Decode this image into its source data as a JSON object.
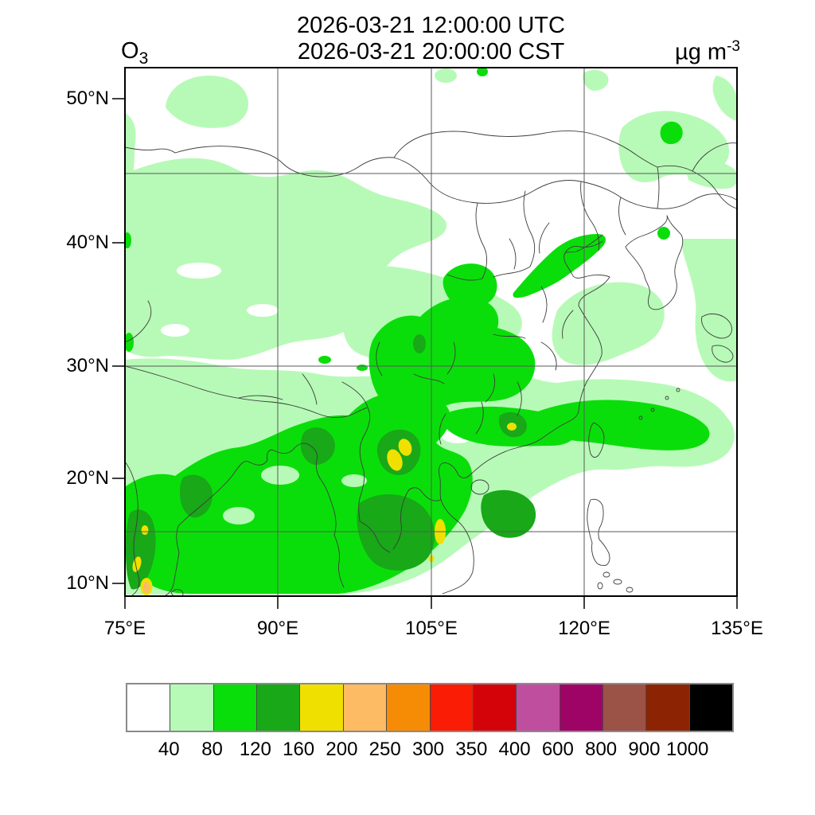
{
  "title": {
    "line1": "2026-03-21 12:00:00 UTC",
    "line2": "2026-03-21 20:00:00 CST"
  },
  "species": {
    "base": "O",
    "subscript": "3"
  },
  "units": {
    "base": "µg m",
    "exponent": "-3"
  },
  "axes": {
    "lon_ticks": [
      "75°E",
      "90°E",
      "105°E",
      "120°E",
      "135°E"
    ],
    "lat_ticks": [
      "50°N",
      "40°N",
      "30°N",
      "20°N",
      "10°N"
    ]
  },
  "colorbar": {
    "labels": [
      "40",
      "80",
      "120",
      "160",
      "200",
      "250",
      "300",
      "350",
      "400",
      "600",
      "800",
      "900",
      "1000"
    ],
    "colors": [
      "#ffffff",
      "#b7fab7",
      "#0ade0a",
      "#18a818",
      "#f0e000",
      "#fdbb63",
      "#f68c05",
      "#fb1c05",
      "#d40309",
      "#bf4f9e",
      "#9e0466",
      "#9b5247",
      "#8c2403",
      "#000000"
    ]
  },
  "chart_data": {
    "type": "heatmap",
    "title": "2026-03-21 12:00:00 UTC / 2026-03-21 20:00:00 CST",
    "variable": "O3 surface concentration",
    "units": "µg m-3",
    "projection": "mercator",
    "lon_range": [
      75,
      135
    ],
    "lat_range": [
      9,
      52.5
    ],
    "x_ticks_deg": [
      75,
      90,
      105,
      120,
      135
    ],
    "y_ticks_deg": [
      50,
      40,
      30,
      20,
      10
    ],
    "grid_lines": {
      "lon_deg": [
        90,
        105,
        120
      ],
      "lat_deg": [
        45,
        30,
        15
      ]
    },
    "levels": [
      40,
      80,
      120,
      160,
      200,
      250,
      300,
      350,
      400,
      600,
      800,
      900,
      1000
    ],
    "palette": [
      "#ffffff",
      "#b7fab7",
      "#0ade0a",
      "#18a818",
      "#f0e000",
      "#fdbb63",
      "#f68c05",
      "#fb1c05",
      "#d40309",
      "#bf4f9e",
      "#9e0466",
      "#9b5247",
      "#8c2403",
      "#000000"
    ],
    "legend_position": "bottom",
    "regions": [
      {
        "area": "Northwest China, Mongolia, most of Northeast China and seas east of Korea/Japan",
        "value_range": "<40 to 80"
      },
      {
        "area": "Tibetan Plateau / west-central China broad pale band",
        "value_range": "40-80"
      },
      {
        "area": "Central-eastern China (Sichuan, North China Plain, Bohai rim diagonal streak)",
        "value_range": "80-160"
      },
      {
        "area": "Southern China, Indochina peninsula, Bay of Bengal and eastern India",
        "value_range": "80-160"
      },
      {
        "area": "Guizhou/Guangxi spots, northern Vietnam-Laos, Pearl River Delta",
        "value_range": "160-200"
      },
      {
        "area": "West coast of India hot spots",
        "value_range": "160-250"
      },
      {
        "area": "Plume over ocean east of Taiwan toward 130°E",
        "value_range": "80-120"
      },
      {
        "area": "Korea and Yellow Sea",
        "value_range": "40-80 with isolated 80-120"
      },
      {
        "area": "Philippines and far southeastern ocean corner",
        "value_range": "<40"
      }
    ]
  }
}
